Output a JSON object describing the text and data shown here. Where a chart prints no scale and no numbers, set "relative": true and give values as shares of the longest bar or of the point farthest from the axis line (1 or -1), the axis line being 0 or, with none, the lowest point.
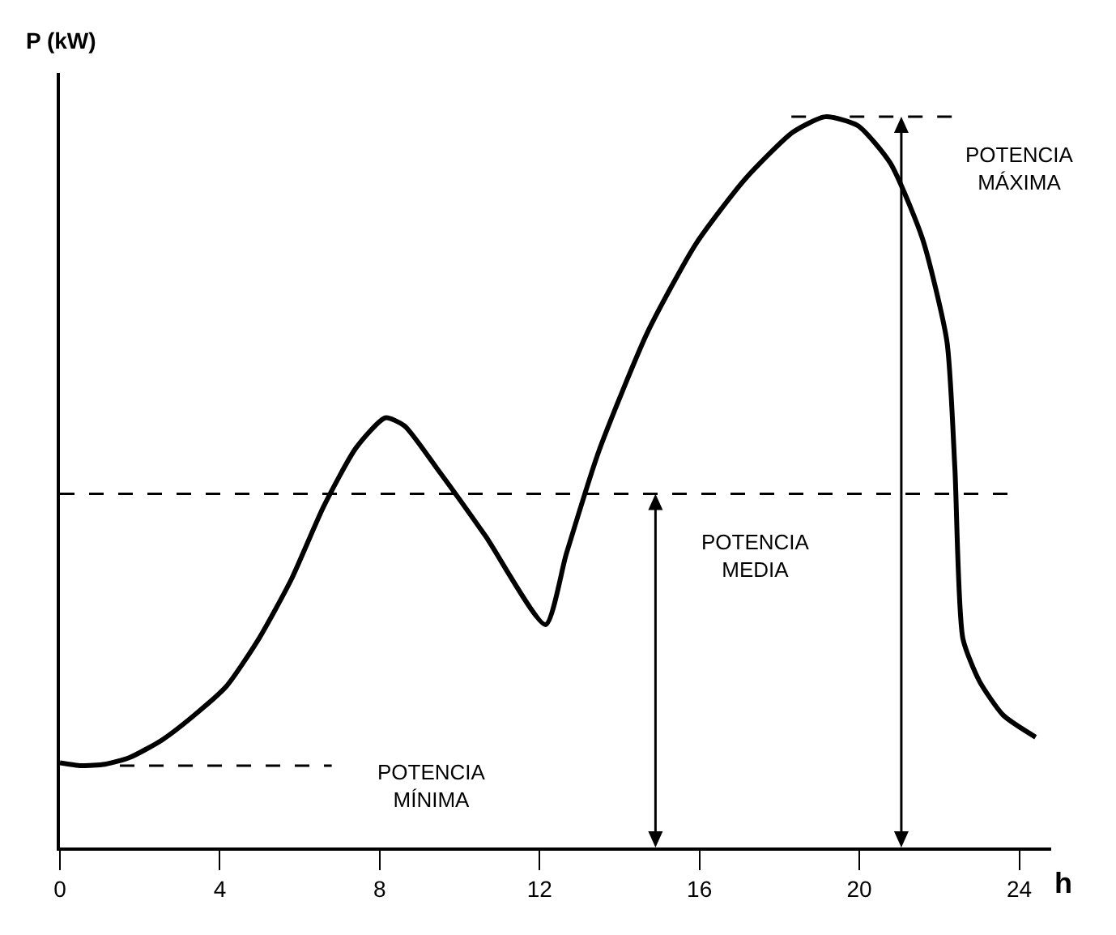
{
  "chart_data": {
    "type": "line",
    "relative": true,
    "ylabel": "P (kW)",
    "xlabel": "h",
    "xlim": [
      0,
      24.8
    ],
    "xticks": [
      0,
      4,
      8,
      12,
      16,
      20,
      24
    ],
    "grid": false,
    "marker": "none",
    "line_style": "solid",
    "series": [
      {
        "color": "#000000",
        "x": [
          0,
          0.53,
          1.13,
          1.74,
          2.55,
          3.36,
          4.17,
          4.98,
          5.79,
          6.6,
          7.41,
          8.14,
          8.62,
          9.43,
          10.65,
          12.15,
          12.67,
          13.48,
          14.7,
          15.91,
          17.13,
          18.34,
          19.15,
          19.96,
          20.77,
          21.58,
          22.19,
          22.39,
          22.59,
          23.0,
          23.6,
          24.41
        ],
        "values": [
          0.116,
          0.112,
          0.114,
          0.123,
          0.147,
          0.181,
          0.221,
          0.286,
          0.367,
          0.467,
          0.547,
          0.588,
          0.577,
          0.519,
          0.426,
          0.305,
          0.402,
          0.542,
          0.705,
          0.826,
          0.914,
          0.979,
          1.0,
          0.988,
          0.937,
          0.833,
          0.693,
          0.519,
          0.286,
          0.228,
          0.181,
          0.151
        ]
      }
    ],
    "ref_lines": [
      {
        "axis": "y",
        "value": 0.112,
        "label": "POTENCIA MÍNIMA",
        "line_style": "dashed",
        "color": "#000000"
      },
      {
        "axis": "y",
        "value": 0.484,
        "label": "POTENCIA MEDIA",
        "line_style": "dashed",
        "color": "#000000"
      },
      {
        "axis": "y",
        "value": 1.0,
        "label": "POTENCIA MÁXIMA",
        "line_style": "dashed",
        "color": "#000000"
      }
    ]
  }
}
